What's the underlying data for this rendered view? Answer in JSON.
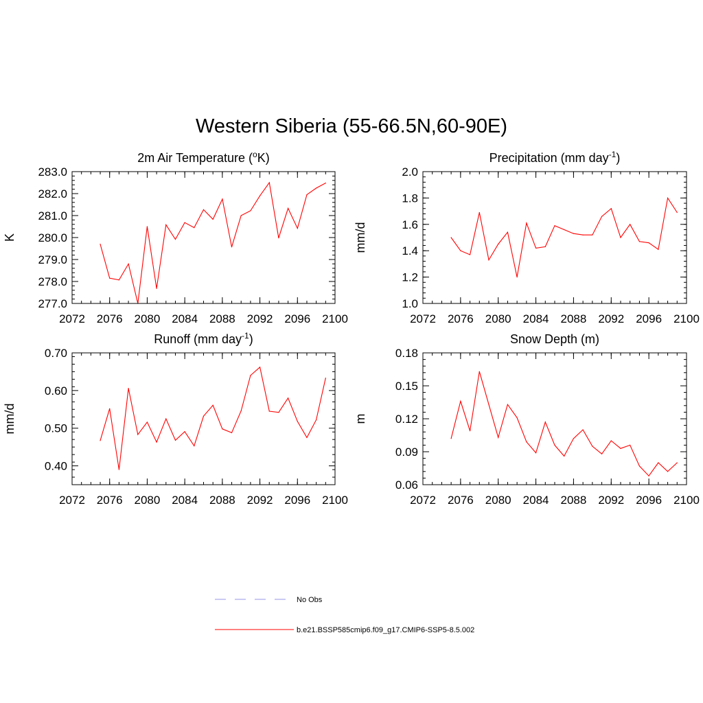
{
  "title": "Western Siberia (55-66.5N,60-90E)",
  "legend": {
    "items": [
      {
        "label": "No Obs",
        "color": "#aaaaee",
        "style": "dashed"
      },
      {
        "label": "b.e21.BSSP585cmip6.f09_g17.CMIP6-SSP5-8.5.002",
        "color": "#ff0000",
        "style": "solid"
      }
    ]
  },
  "chart_data": [
    {
      "type": "line",
      "title": "2m Air Temperature (°K)",
      "title_parts": [
        "2m Air Temperature (",
        "o",
        "K)"
      ],
      "ylabel": "K",
      "xlabel": "",
      "xlim": [
        2072,
        2100
      ],
      "ylim": [
        277.0,
        283.0
      ],
      "xticks": [
        2072,
        2076,
        2080,
        2084,
        2088,
        2092,
        2096,
        2100
      ],
      "yticks": [
        277.0,
        278.0,
        279.0,
        280.0,
        281.0,
        282.0,
        283.0
      ],
      "ytick_decimals": 1,
      "color": "#ff0000",
      "x": [
        2075,
        2076,
        2077,
        2078,
        2079,
        2080,
        2081,
        2082,
        2083,
        2084,
        2085,
        2086,
        2087,
        2088,
        2089,
        2090,
        2091,
        2092,
        2093,
        2094,
        2095,
        2096,
        2097,
        2098,
        2099
      ],
      "y": [
        279.7,
        278.15,
        278.07,
        278.8,
        277.0,
        280.5,
        277.68,
        280.58,
        279.92,
        280.68,
        280.45,
        281.27,
        280.83,
        281.75,
        279.57,
        281.0,
        281.22,
        281.9,
        282.5,
        279.98,
        281.33,
        280.42,
        281.95,
        282.25,
        282.48
      ]
    },
    {
      "type": "line",
      "title": "Precipitation (mm day-1)",
      "title_parts": [
        "Precipitation (mm day",
        "-1",
        ")"
      ],
      "ylabel": "mm/d",
      "xlabel": "",
      "xlim": [
        2072,
        2100
      ],
      "ylim": [
        1.0,
        2.0
      ],
      "xticks": [
        2072,
        2076,
        2080,
        2084,
        2088,
        2092,
        2096,
        2100
      ],
      "yticks": [
        1.0,
        1.2,
        1.4,
        1.6,
        1.8,
        2.0
      ],
      "ytick_decimals": 1,
      "color": "#ff0000",
      "x": [
        2075,
        2076,
        2077,
        2078,
        2079,
        2080,
        2081,
        2082,
        2083,
        2084,
        2085,
        2086,
        2087,
        2088,
        2089,
        2090,
        2091,
        2092,
        2093,
        2094,
        2095,
        2096,
        2097,
        2098,
        2099
      ],
      "y": [
        1.5,
        1.4,
        1.37,
        1.69,
        1.33,
        1.45,
        1.54,
        1.2,
        1.61,
        1.42,
        1.43,
        1.59,
        1.56,
        1.53,
        1.52,
        1.52,
        1.66,
        1.72,
        1.5,
        1.6,
        1.47,
        1.46,
        1.41,
        1.8,
        1.69
      ]
    },
    {
      "type": "line",
      "title": "Runoff (mm day-1)",
      "title_parts": [
        "Runoff (mm day",
        "-1",
        ")"
      ],
      "ylabel": "mm/d",
      "xlabel": "",
      "xlim": [
        2072,
        2100
      ],
      "ylim": [
        0.35,
        0.7
      ],
      "xticks": [
        2072,
        2076,
        2080,
        2084,
        2088,
        2092,
        2096,
        2100
      ],
      "yticks": [
        0.4,
        0.5,
        0.6,
        0.7
      ],
      "ytick_decimals": 2,
      "color": "#ff0000",
      "x": [
        2075,
        2076,
        2077,
        2078,
        2079,
        2080,
        2081,
        2082,
        2083,
        2084,
        2085,
        2086,
        2087,
        2088,
        2089,
        2090,
        2091,
        2092,
        2093,
        2094,
        2095,
        2096,
        2097,
        2098,
        2099
      ],
      "y": [
        0.467,
        0.552,
        0.39,
        0.606,
        0.483,
        0.516,
        0.463,
        0.525,
        0.468,
        0.491,
        0.453,
        0.532,
        0.561,
        0.498,
        0.488,
        0.546,
        0.64,
        0.662,
        0.545,
        0.542,
        0.58,
        0.518,
        0.475,
        0.522,
        0.633
      ]
    },
    {
      "type": "line",
      "title": "Snow Depth (m)",
      "title_parts": [
        "Snow Depth (m)",
        "",
        ""
      ],
      "ylabel": "m",
      "xlabel": "",
      "xlim": [
        2072,
        2100
      ],
      "ylim": [
        0.06,
        0.18
      ],
      "xticks": [
        2072,
        2076,
        2080,
        2084,
        2088,
        2092,
        2096,
        2100
      ],
      "yticks": [
        0.06,
        0.09,
        0.12,
        0.15,
        0.18
      ],
      "ytick_decimals": 2,
      "color": "#ff0000",
      "x": [
        2075,
        2076,
        2077,
        2078,
        2079,
        2080,
        2081,
        2082,
        2083,
        2084,
        2085,
        2086,
        2087,
        2088,
        2089,
        2090,
        2091,
        2092,
        2093,
        2094,
        2095,
        2096,
        2097,
        2098,
        2099
      ],
      "y": [
        0.102,
        0.136,
        0.109,
        0.163,
        0.133,
        0.103,
        0.133,
        0.121,
        0.099,
        0.089,
        0.117,
        0.096,
        0.086,
        0.102,
        0.11,
        0.095,
        0.088,
        0.1,
        0.093,
        0.096,
        0.077,
        0.068,
        0.08,
        0.072,
        0.08
      ]
    }
  ]
}
